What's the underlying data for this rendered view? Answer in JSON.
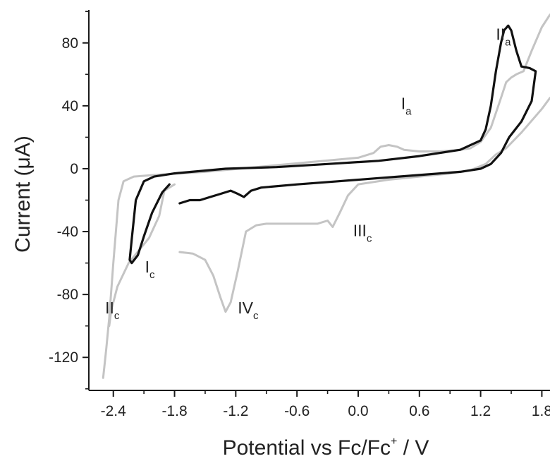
{
  "chart_data": {
    "type": "line",
    "xlabel": {
      "main": "Potential vs Fc/Fc",
      "sup": "+",
      "tail": " / V"
    },
    "ylabel": "Current (μA)",
    "xlim": [
      -2.64,
      1.88
    ],
    "ylim": [
      -141,
      101
    ],
    "x_ticks": [
      {
        "value": -2.4,
        "label": "-2.4"
      },
      {
        "value": -1.8,
        "label": "-1.8"
      },
      {
        "value": -1.2,
        "label": "-1.2"
      },
      {
        "value": -0.6,
        "label": "-0.6"
      },
      {
        "value": 0.0,
        "label": "0.0"
      },
      {
        "value": 0.6,
        "label": "0.6"
      },
      {
        "value": 1.2,
        "label": "1.2"
      },
      {
        "value": 1.8,
        "label": "1.8"
      }
    ],
    "y_ticks": [
      {
        "value": 80,
        "label": "80"
      },
      {
        "value": 40,
        "label": "40"
      },
      {
        "value": 0,
        "label": "0"
      },
      {
        "value": -40,
        "label": "-40"
      },
      {
        "value": -80,
        "label": "-80"
      },
      {
        "value": -120,
        "label": "-120"
      }
    ],
    "grid": false,
    "series": [
      {
        "color": "#c4c4c4",
        "points": [
          [
            -1.75,
            -53
          ],
          [
            -1.62,
            -54
          ],
          [
            -1.5,
            -58
          ],
          [
            -1.42,
            -68
          ],
          [
            -1.35,
            -82
          ],
          [
            -1.3,
            -91
          ],
          [
            -1.25,
            -85
          ],
          [
            -1.18,
            -65
          ],
          [
            -1.1,
            -40
          ],
          [
            -1.0,
            -36
          ],
          [
            -0.9,
            -35
          ],
          [
            -0.7,
            -35
          ],
          [
            -0.4,
            -35
          ],
          [
            -0.3,
            -33
          ],
          [
            -0.25,
            -37
          ],
          [
            -0.18,
            -28
          ],
          [
            -0.1,
            -17
          ],
          [
            0.0,
            -10
          ],
          [
            0.3,
            -7
          ],
          [
            0.6,
            -5
          ],
          [
            0.9,
            -3
          ],
          [
            1.1,
            -1
          ],
          [
            1.25,
            3
          ],
          [
            1.35,
            9
          ],
          [
            1.45,
            13
          ],
          [
            1.6,
            23
          ],
          [
            1.8,
            38
          ],
          [
            1.88,
            45
          ]
        ]
      },
      {
        "color": "#c4c4c4",
        "points": [
          [
            1.88,
            98
          ],
          [
            1.8,
            90
          ],
          [
            1.7,
            75
          ],
          [
            1.62,
            62
          ],
          [
            1.55,
            60
          ],
          [
            1.5,
            58
          ],
          [
            1.45,
            55
          ],
          [
            1.4,
            45
          ],
          [
            1.3,
            26
          ],
          [
            1.2,
            17
          ],
          [
            1.1,
            13
          ],
          [
            1.0,
            12
          ],
          [
            0.8,
            11
          ],
          [
            0.6,
            11
          ],
          [
            0.45,
            12
          ],
          [
            0.38,
            14
          ],
          [
            0.3,
            15
          ],
          [
            0.22,
            14
          ],
          [
            0.15,
            10
          ],
          [
            0.0,
            7
          ],
          [
            -0.5,
            4
          ],
          [
            -1.0,
            1
          ],
          [
            -1.5,
            -2
          ],
          [
            -2.0,
            -4
          ],
          [
            -2.2,
            -5
          ],
          [
            -2.3,
            -8
          ],
          [
            -2.35,
            -20
          ],
          [
            -2.4,
            -60
          ],
          [
            -2.44,
            -95
          ],
          [
            -2.47,
            -115
          ],
          [
            -2.5,
            -133
          ]
        ]
      },
      {
        "color": "#c4c4c4",
        "points": [
          [
            -2.44,
            -100
          ],
          [
            -2.42,
            -90
          ],
          [
            -2.36,
            -75
          ],
          [
            -2.25,
            -60
          ],
          [
            -2.15,
            -52
          ],
          [
            -2.05,
            -44
          ],
          [
            -1.95,
            -30
          ],
          [
            -1.9,
            -14
          ],
          [
            -1.8,
            -10
          ]
        ]
      },
      {
        "color": "#111111",
        "points": [
          [
            -1.75,
            -22
          ],
          [
            -1.65,
            -20
          ],
          [
            -1.55,
            -20
          ],
          [
            -1.45,
            -18
          ],
          [
            -1.35,
            -16
          ],
          [
            -1.25,
            -14
          ],
          [
            -1.18,
            -16
          ],
          [
            -1.12,
            -18
          ],
          [
            -1.05,
            -14
          ],
          [
            -0.95,
            -12
          ],
          [
            -0.6,
            -10
          ],
          [
            -0.2,
            -8
          ],
          [
            0.2,
            -6
          ],
          [
            0.6,
            -4
          ],
          [
            1.0,
            -2
          ],
          [
            1.2,
            0
          ],
          [
            1.3,
            3
          ],
          [
            1.4,
            10
          ],
          [
            1.48,
            20
          ],
          [
            1.6,
            30
          ],
          [
            1.7,
            43
          ],
          [
            1.74,
            62
          ],
          [
            1.68,
            64
          ],
          [
            1.6,
            65
          ],
          [
            1.55,
            75
          ],
          [
            1.5,
            88
          ],
          [
            1.47,
            91
          ],
          [
            1.43,
            88
          ],
          [
            1.4,
            80
          ],
          [
            1.35,
            62
          ],
          [
            1.3,
            40
          ],
          [
            1.25,
            25
          ],
          [
            1.2,
            18
          ],
          [
            1.0,
            12
          ],
          [
            0.6,
            8
          ],
          [
            0.2,
            5
          ],
          [
            -0.3,
            3
          ],
          [
            -0.8,
            1
          ],
          [
            -1.3,
            0
          ],
          [
            -1.8,
            -3
          ],
          [
            -2.0,
            -5
          ],
          [
            -2.1,
            -8
          ],
          [
            -2.18,
            -20
          ],
          [
            -2.22,
            -45
          ],
          [
            -2.24,
            -58
          ],
          [
            -2.22,
            -60
          ],
          [
            -2.16,
            -55
          ],
          [
            -2.1,
            -43
          ],
          [
            -2.02,
            -28
          ],
          [
            -1.92,
            -15
          ],
          [
            -1.85,
            -10
          ]
        ]
      }
    ],
    "annotations": [
      {
        "main": "II",
        "sub": "a",
        "x": 1.35,
        "y": 82
      },
      {
        "main": "I",
        "sub": "a",
        "x": 0.42,
        "y": 38
      },
      {
        "main": "III",
        "sub": "c",
        "x": -0.05,
        "y": -43
      },
      {
        "main": "I",
        "sub": "c",
        "x": -2.09,
        "y": -66
      },
      {
        "main": "II",
        "sub": "c",
        "x": -2.48,
        "y": -92
      },
      {
        "main": "IV",
        "sub": "c",
        "x": -1.18,
        "y": -92
      }
    ]
  }
}
